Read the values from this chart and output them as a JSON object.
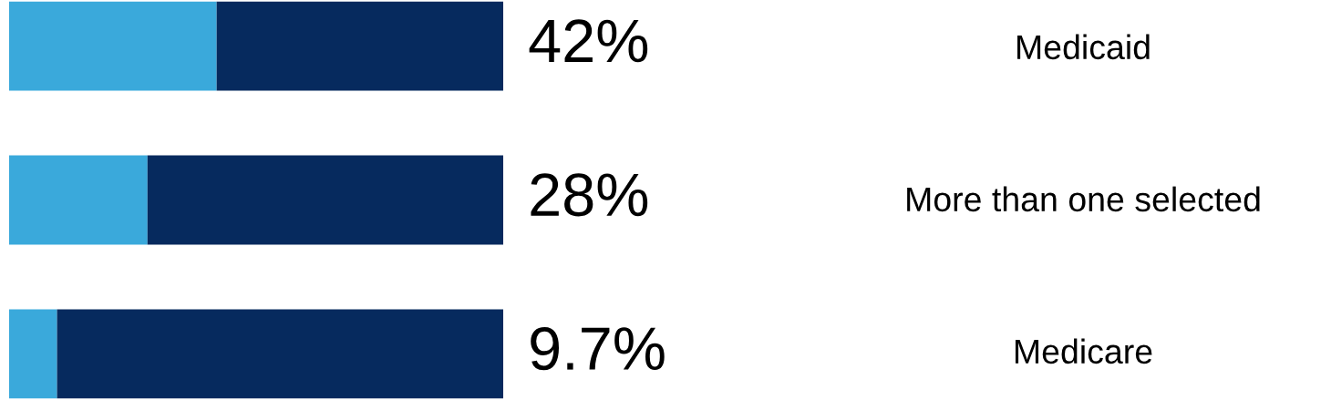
{
  "chart_data": {
    "type": "bar",
    "orientation": "horizontal",
    "stacked": true,
    "categories": [
      "Medicaid",
      "More than one selected",
      "Medicare"
    ],
    "series": [
      {
        "color": "#3aa9db",
        "values": [
          42,
          28,
          9.7
        ],
        "value_labels": [
          "42%",
          "28%",
          "9.7%"
        ]
      },
      {
        "color": "#062a5e",
        "values": [
          58,
          72,
          90.3
        ]
      }
    ],
    "xlim": [
      0,
      100
    ],
    "tick_labels": false,
    "grid": false,
    "legend": false
  }
}
